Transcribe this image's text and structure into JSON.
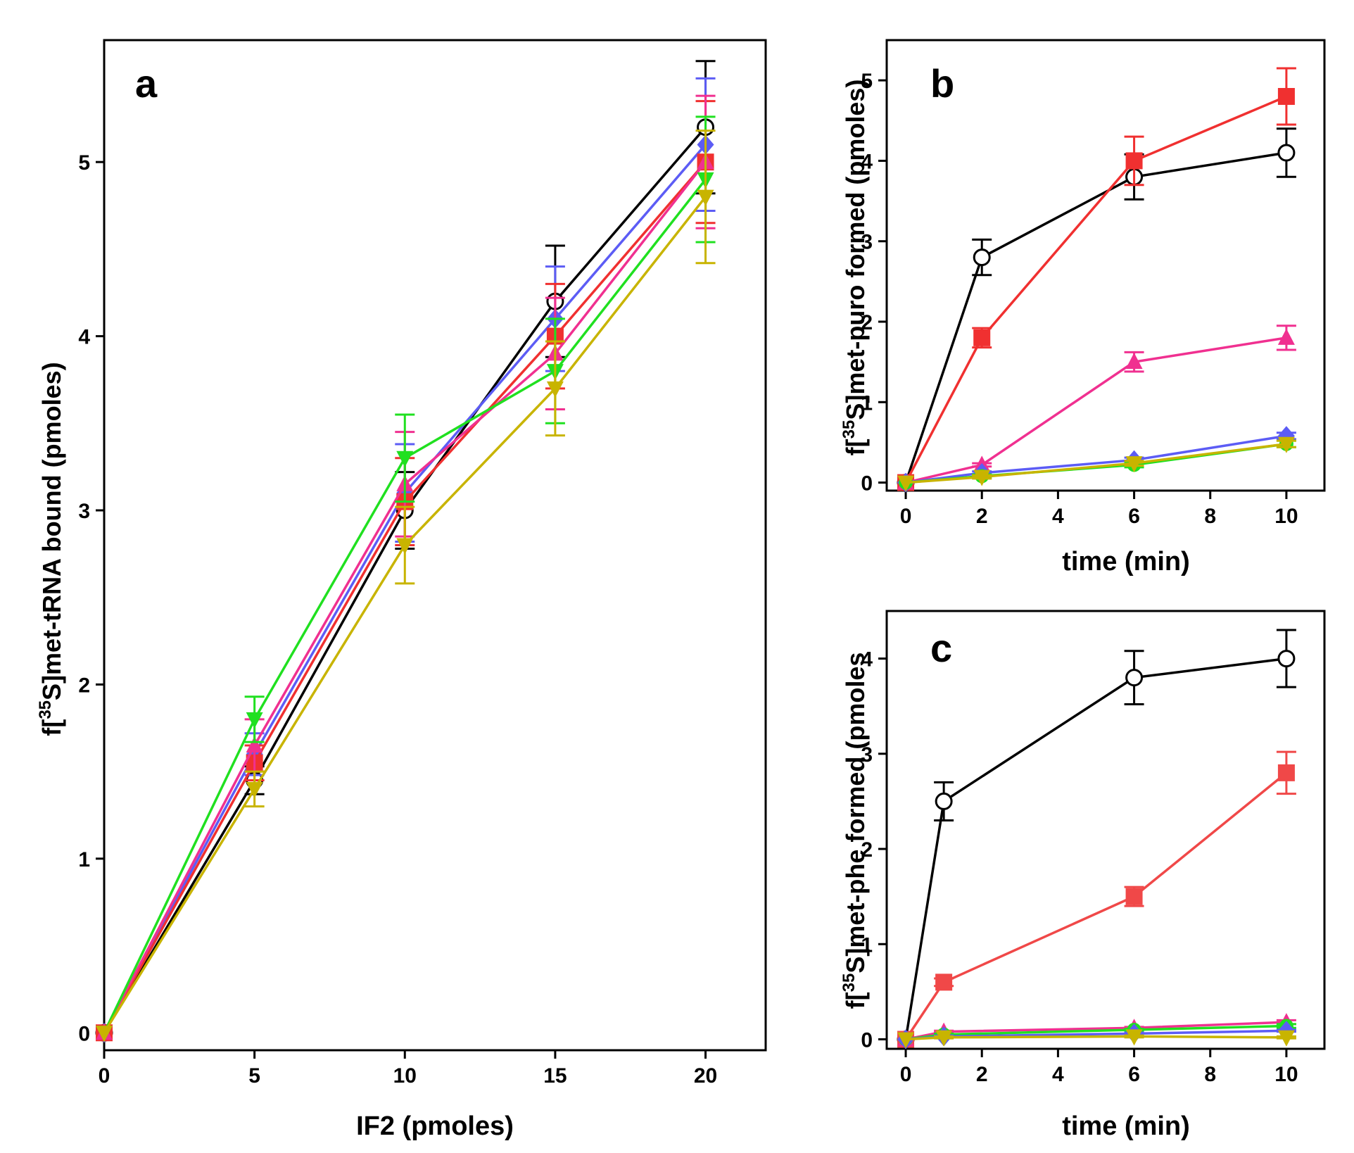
{
  "chart_data": [
    {
      "panel": "a",
      "type": "line",
      "title": "",
      "xlabel": "IF2 (pmoles)",
      "ylabel_prefix": "f[",
      "ylabel_sup": "35",
      "ylabel_suffix": "S]met-tRNA bound (pmoles)",
      "xlim": [
        0,
        22
      ],
      "ylim": [
        -0.1,
        5.7
      ],
      "xticks": [
        0,
        5,
        10,
        15,
        20
      ],
      "yticks": [
        0,
        1,
        2,
        3,
        4,
        5
      ],
      "series": [
        {
          "name": "black",
          "color": "#000000",
          "marker": "circle-open",
          "x": [
            0,
            5,
            10,
            15,
            20
          ],
          "y": [
            0,
            1.45,
            3.0,
            4.2,
            5.2
          ],
          "err": [
            0,
            0.08,
            0.22,
            0.32,
            0.38
          ]
        },
        {
          "name": "blue",
          "color": "#5c5cf5",
          "marker": "diamond",
          "x": [
            0,
            5,
            10,
            15,
            20
          ],
          "y": [
            0,
            1.6,
            3.1,
            4.1,
            5.1
          ],
          "err": [
            0,
            0.12,
            0.28,
            0.3,
            0.38
          ]
        },
        {
          "name": "red",
          "color": "#f03030",
          "marker": "square",
          "x": [
            0,
            5,
            10,
            15,
            20
          ],
          "y": [
            0,
            1.55,
            3.05,
            4.0,
            5.0
          ],
          "err": [
            0,
            0.1,
            0.25,
            0.3,
            0.35
          ]
        },
        {
          "name": "magenta",
          "color": "#f03090",
          "marker": "triangle-up",
          "x": [
            0,
            5,
            10,
            15,
            20
          ],
          "y": [
            0,
            1.65,
            3.15,
            3.9,
            5.0
          ],
          "err": [
            0,
            0.15,
            0.3,
            0.32,
            0.38
          ]
        },
        {
          "name": "green",
          "color": "#20e020",
          "marker": "triangle-down",
          "x": [
            0,
            5,
            10,
            15,
            20
          ],
          "y": [
            0,
            1.8,
            3.3,
            3.8,
            4.9
          ],
          "err": [
            0,
            0.13,
            0.25,
            0.3,
            0.36
          ]
        },
        {
          "name": "olive",
          "color": "#c8b400",
          "marker": "triangle-down",
          "x": [
            0,
            5,
            10,
            15,
            20
          ],
          "y": [
            0,
            1.4,
            2.8,
            3.7,
            4.8
          ],
          "err": [
            0,
            0.1,
            0.22,
            0.27,
            0.38
          ]
        }
      ]
    },
    {
      "panel": "b",
      "type": "line",
      "title": "",
      "xlabel": "time (min)",
      "ylabel_prefix": "f[",
      "ylabel_sup": "35",
      "ylabel_suffix": "S]met-puro formed (pmoles)",
      "xlim": [
        -0.5,
        11
      ],
      "ylim": [
        -0.1,
        5.5
      ],
      "xticks": [
        0,
        2,
        4,
        6,
        8,
        10
      ],
      "yticks": [
        0,
        1,
        2,
        3,
        4,
        5
      ],
      "series": [
        {
          "name": "black",
          "color": "#000000",
          "marker": "circle-open",
          "x": [
            0,
            2,
            6,
            10
          ],
          "y": [
            0,
            2.8,
            3.8,
            4.1
          ],
          "err": [
            0,
            0.22,
            0.28,
            0.3
          ]
        },
        {
          "name": "red",
          "color": "#f03030",
          "marker": "square",
          "x": [
            0,
            2,
            6,
            10
          ],
          "y": [
            0,
            1.8,
            4.0,
            4.8
          ],
          "err": [
            0,
            0.12,
            0.3,
            0.35
          ]
        },
        {
          "name": "magenta",
          "color": "#f03090",
          "marker": "triangle-up",
          "x": [
            0,
            2,
            6,
            10
          ],
          "y": [
            0,
            0.22,
            1.5,
            1.8
          ],
          "err": [
            0,
            0.02,
            0.12,
            0.15
          ]
        },
        {
          "name": "blue",
          "color": "#5c5cf5",
          "marker": "diamond",
          "x": [
            0,
            2,
            6,
            10
          ],
          "y": [
            0,
            0.12,
            0.28,
            0.58
          ],
          "err": [
            0,
            0.02,
            0.03,
            0.04
          ]
        },
        {
          "name": "green",
          "color": "#20e020",
          "marker": "circle-filled",
          "x": [
            0,
            2,
            6,
            10
          ],
          "y": [
            0,
            0.08,
            0.22,
            0.48
          ],
          "err": [
            0,
            0.02,
            0.03,
            0.04
          ]
        },
        {
          "name": "olive",
          "color": "#c8b400",
          "marker": "triangle-down",
          "x": [
            0,
            2,
            6,
            10
          ],
          "y": [
            0,
            0.07,
            0.24,
            0.48
          ],
          "err": [
            0,
            0.02,
            0.03,
            0.04
          ]
        }
      ]
    },
    {
      "panel": "c",
      "type": "line",
      "title": "",
      "xlabel": "time (min)",
      "ylabel_prefix": "f[",
      "ylabel_sup": "35",
      "ylabel_suffix": "S]met-phe formed (pmoles",
      "xlim": [
        -0.5,
        11
      ],
      "ylim": [
        -0.1,
        4.5
      ],
      "xticks": [
        0,
        2,
        4,
        6,
        8,
        10
      ],
      "yticks": [
        0,
        1,
        2,
        3,
        4
      ],
      "series": [
        {
          "name": "black",
          "color": "#000000",
          "marker": "circle-open",
          "x": [
            0,
            1,
            6,
            10
          ],
          "y": [
            0,
            2.5,
            3.8,
            4.0
          ],
          "err": [
            0,
            0.2,
            0.28,
            0.3
          ]
        },
        {
          "name": "red",
          "color": "#f04848",
          "marker": "square",
          "x": [
            0,
            1,
            6,
            10
          ],
          "y": [
            0,
            0.6,
            1.5,
            2.8
          ],
          "err": [
            0,
            0.04,
            0.1,
            0.22
          ]
        },
        {
          "name": "magenta",
          "color": "#f03090",
          "marker": "triangle-up",
          "x": [
            0,
            1,
            6,
            10
          ],
          "y": [
            0,
            0.08,
            0.12,
            0.18
          ],
          "err": [
            0,
            0.01,
            0.01,
            0.02
          ]
        },
        {
          "name": "green",
          "color": "#20e020",
          "marker": "circle-filled",
          "x": [
            0,
            1,
            6,
            10
          ],
          "y": [
            0,
            0.05,
            0.1,
            0.14
          ],
          "err": [
            0,
            0.01,
            0.01,
            0.02
          ]
        },
        {
          "name": "blue",
          "color": "#5c5cf5",
          "marker": "diamond",
          "x": [
            0,
            1,
            6,
            10
          ],
          "y": [
            0,
            0.03,
            0.06,
            0.09
          ],
          "err": [
            0,
            0.01,
            0.01,
            0.01
          ]
        },
        {
          "name": "olive",
          "color": "#c8b400",
          "marker": "triangle-down",
          "x": [
            0,
            1,
            6,
            10
          ],
          "y": [
            0,
            0.02,
            0.03,
            0.02
          ],
          "err": [
            0,
            0.01,
            0.01,
            0.01
          ]
        }
      ]
    }
  ]
}
